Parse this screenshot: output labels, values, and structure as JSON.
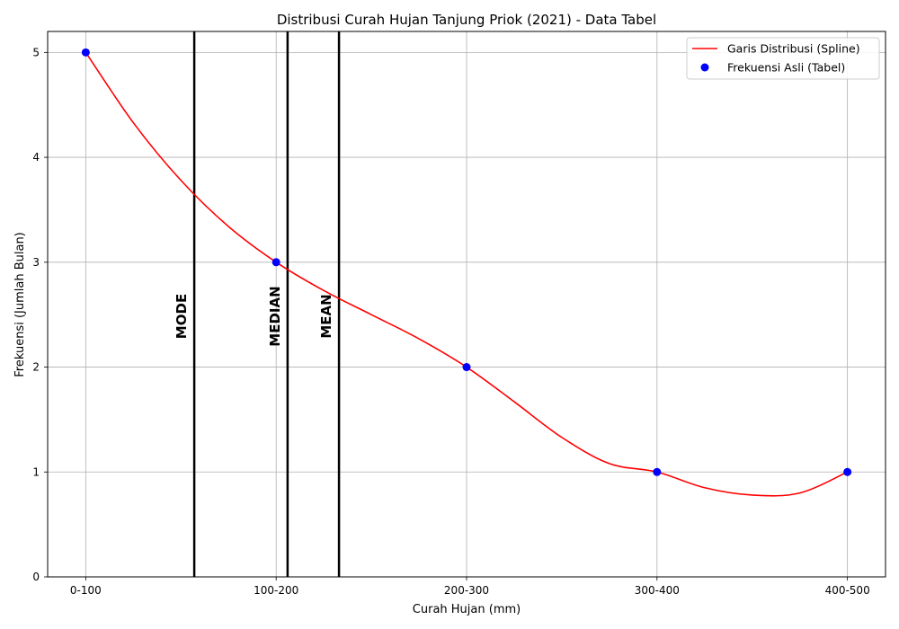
{
  "chart_data": {
    "type": "line",
    "title": "Distribusi Curah Hujan Tanjung Priok (2021) - Data Tabel",
    "xlabel": "Curah Hujan (mm)",
    "ylabel": "Frekuensi (Jumlah Bulan)",
    "categories": [
      "0-100",
      "100-200",
      "200-300",
      "300-400",
      "400-500"
    ],
    "x_range": [
      -0.2,
      4.2
    ],
    "ylim": [
      0,
      5.2
    ],
    "yticks": [
      "0",
      "1",
      "2",
      "3",
      "4",
      "5"
    ],
    "grid": true,
    "legend_position": "top-right",
    "series": [
      {
        "name": "Garis Distribusi (Spline)",
        "kind": "line",
        "color": "#ff0000",
        "x": [
          0,
          0.25,
          0.5,
          0.75,
          1,
          1.25,
          1.5,
          1.75,
          2,
          2.25,
          2.5,
          2.75,
          3,
          3.25,
          3.5,
          3.75,
          4
        ],
        "values": [
          5,
          4.33,
          3.78,
          3.34,
          3.0,
          2.73,
          2.5,
          2.27,
          2.0,
          1.67,
          1.33,
          1.08,
          1.0,
          0.85,
          0.78,
          0.8,
          1.0
        ]
      },
      {
        "name": "Frekuensi Asli (Tabel)",
        "kind": "points",
        "color": "#0000ff",
        "x": [
          0,
          1,
          2,
          3,
          4
        ],
        "values": [
          5,
          3,
          2,
          1,
          1
        ]
      }
    ],
    "vlines": [
      {
        "label": "MODE",
        "x": 0.57
      },
      {
        "label": "MEDIAN",
        "x": 1.06
      },
      {
        "label": "MEAN",
        "x": 1.33
      }
    ]
  }
}
